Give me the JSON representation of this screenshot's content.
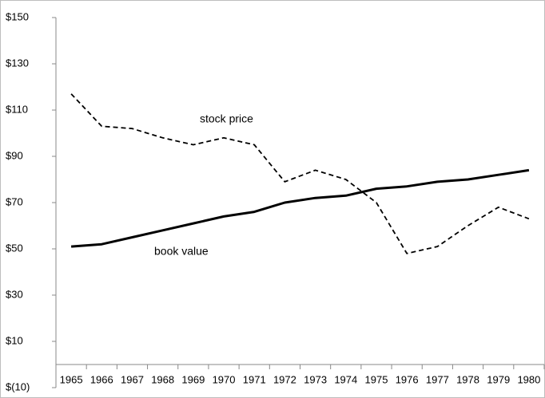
{
  "chart_data": {
    "type": "line",
    "categories": [
      "1965",
      "1966",
      "1967",
      "1968",
      "1969",
      "1970",
      "1971",
      "1972",
      "1973",
      "1974",
      "1975",
      "1976",
      "1977",
      "1978",
      "1979",
      "1980"
    ],
    "series": [
      {
        "name": "stock price",
        "color": "#000000",
        "dash": "dashed",
        "values": [
          117,
          103,
          102,
          98,
          95,
          98,
          95,
          79,
          84,
          80,
          70,
          48,
          51,
          60,
          68,
          63
        ]
      },
      {
        "name": "book value",
        "color": "#000000",
        "dash": "solid",
        "values": [
          51,
          52,
          55,
          58,
          61,
          64,
          66,
          70,
          72,
          73,
          76,
          77,
          79,
          80,
          82,
          84
        ]
      }
    ],
    "ylim": [
      -10,
      150
    ],
    "yticks": [
      {
        "value": -10,
        "label": "$(10)"
      },
      {
        "value": 10,
        "label": "$10"
      },
      {
        "value": 30,
        "label": "$30"
      },
      {
        "value": 50,
        "label": "$50"
      },
      {
        "value": 70,
        "label": "$70"
      },
      {
        "value": 90,
        "label": "$90"
      },
      {
        "value": 110,
        "label": "$110"
      },
      {
        "value": 130,
        "label": "$130"
      },
      {
        "value": 150,
        "label": "$150"
      }
    ],
    "grid": false
  }
}
